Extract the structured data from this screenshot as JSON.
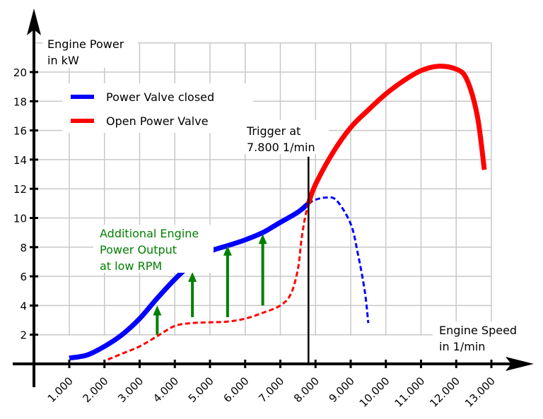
{
  "chart_data": {
    "type": "line",
    "title": "",
    "ylabel_lines": [
      "Engine Power",
      "in kW"
    ],
    "xlabel_lines": [
      "Engine Speed",
      "in 1/min"
    ],
    "xlim": [
      1000,
      13000
    ],
    "ylim": [
      0,
      22
    ],
    "grid": true,
    "x_ticks": [
      1000,
      2000,
      3000,
      4000,
      5000,
      6000,
      7000,
      8000,
      9000,
      10000,
      11000,
      12000,
      13000
    ],
    "x_tick_labels": [
      "1.000",
      "2.000",
      "3.000",
      "4.000",
      "5.000",
      "6.000",
      "7.000",
      "8.000",
      "9.000",
      "10.000",
      "11.000",
      "12.000",
      "13.000"
    ],
    "y_ticks": [
      2,
      4,
      6,
      8,
      10,
      12,
      14,
      16,
      18,
      20
    ],
    "y_tick_labels": [
      "2",
      "4",
      "6",
      "8",
      "10",
      "12",
      "14",
      "16",
      "18",
      "20"
    ],
    "legend": {
      "placement": "top-left",
      "entries": [
        {
          "label": "Power Valve closed",
          "color": "#0000ff"
        },
        {
          "label": "Open Power Valve",
          "color": "#ff0000"
        }
      ]
    },
    "series": [
      {
        "name": "Power Valve closed",
        "color": "#0000ff",
        "style": "solid",
        "x": [
          1000,
          1500,
          2000,
          2500,
          3000,
          3500,
          4000,
          4500,
          5000,
          5500,
          6000,
          6500,
          7000,
          7500,
          7800
        ],
        "y": [
          0.4,
          0.6,
          1.2,
          2.0,
          3.1,
          4.5,
          5.8,
          6.9,
          7.7,
          8.1,
          8.5,
          9.0,
          9.7,
          10.4,
          11.0
        ]
      },
      {
        "name": "Power Valve closed",
        "color": "#0000ff",
        "style": "dashed",
        "x": [
          7800,
          8000,
          8300,
          8600,
          9000,
          9200,
          9400,
          9500
        ],
        "y": [
          11.0,
          11.25,
          11.4,
          11.2,
          9.6,
          7.6,
          5.0,
          2.8
        ]
      },
      {
        "name": "Open Power Valve",
        "color": "#ff0000",
        "style": "dashed",
        "x": [
          2100,
          2500,
          3000,
          3500,
          4000,
          4500,
          5000,
          5500,
          6000,
          6500,
          7000,
          7300,
          7500,
          7600,
          7700,
          7800
        ],
        "y": [
          0.3,
          0.7,
          1.2,
          1.9,
          2.6,
          2.8,
          2.85,
          2.9,
          3.1,
          3.5,
          4.0,
          4.8,
          6.5,
          8.5,
          10.0,
          11.0
        ]
      },
      {
        "name": "Open Power Valve",
        "color": "#ff0000",
        "style": "solid",
        "x": [
          7800,
          8000,
          8500,
          9000,
          9500,
          10000,
          10500,
          11000,
          11500,
          12000,
          12300,
          12600,
          12800
        ],
        "y": [
          11.0,
          12.3,
          14.5,
          16.2,
          17.4,
          18.5,
          19.4,
          20.1,
          20.4,
          20.2,
          19.5,
          17.0,
          13.3
        ]
      }
    ],
    "arrows": [
      {
        "x": 3500,
        "from": 2.0,
        "to": 4.0
      },
      {
        "x": 4500,
        "from": 3.2,
        "to": 6.3
      },
      {
        "x": 5500,
        "from": 3.2,
        "to": 8.1
      },
      {
        "x": 6500,
        "from": 4.0,
        "to": 8.9
      }
    ],
    "arrow_color": "#008000",
    "trigger": {
      "x": 7800,
      "top": 14.2,
      "label_lines": [
        "Trigger at",
        "7.800 1/min"
      ]
    },
    "annotation": {
      "lines": [
        "Additional Engine",
        "Power Output",
        "at low RPM"
      ],
      "color": "#008000"
    }
  }
}
